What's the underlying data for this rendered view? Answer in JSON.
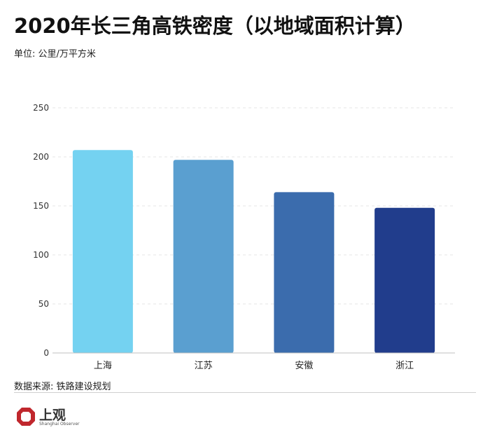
{
  "title": "2020年长三角高铁密度（以地域面积计算）",
  "subtitle": "单位: 公里/万平方米",
  "source": "数据来源: 铁路建设规划",
  "logo": {
    "text": "上观",
    "subtext": "Shanghai Observer",
    "icon": "shanghai-observer-logo-icon",
    "color": "#c0272d"
  },
  "chart_data": {
    "type": "bar",
    "categories": [
      "上海",
      "江苏",
      "安徽",
      "浙江"
    ],
    "values": [
      207,
      197,
      164,
      148
    ],
    "colors": [
      "#74d2f1",
      "#5a9fd0",
      "#3b6cad",
      "#213d8c"
    ],
    "ylim": [
      0,
      250
    ],
    "yticks": [
      0,
      50,
      100,
      150,
      200,
      250
    ],
    "grid": true,
    "grid_style": "dashed"
  }
}
